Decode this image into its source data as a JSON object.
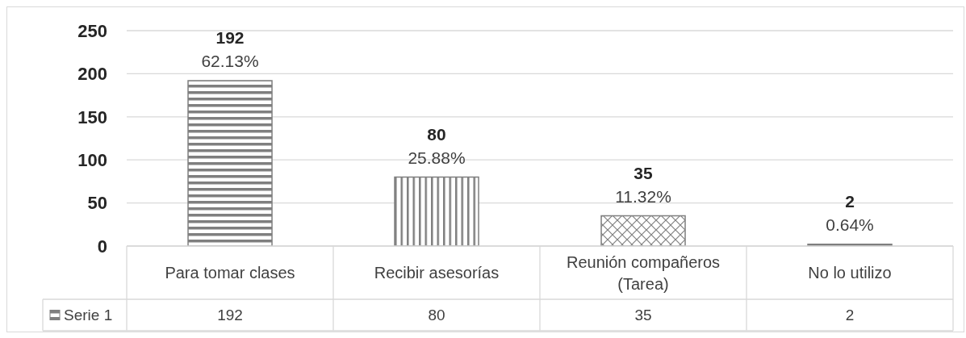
{
  "chart_data": {
    "type": "bar",
    "categories": [
      "Para tomar clases",
      "Recibir asesorías",
      "Reunión compañeros (Tarea)",
      "No lo utilizo"
    ],
    "series": [
      {
        "name": "Serie 1",
        "color": "#7f7f7f",
        "values": [
          192,
          80,
          35,
          2
        ]
      }
    ],
    "ylim": [
      0,
      250
    ],
    "yticks": [
      0,
      50,
      100,
      150,
      200,
      250
    ],
    "grid": "y",
    "legend": "bottom left",
    "data_labels": true,
    "annotations": [
      {
        "text": "192\n62.13%",
        "x": "Para tomar clases",
        "y": 192
      },
      {
        "text": "80\n25.88%",
        "x": "Recibir asesorías",
        "y": 80
      },
      {
        "text": "35\n11.32%",
        "x": "Reunión compañeros (Tarea)",
        "y": 35
      },
      {
        "text": "2\n0.64%",
        "x": "No lo utilizo",
        "y": 2
      }
    ]
  }
}
